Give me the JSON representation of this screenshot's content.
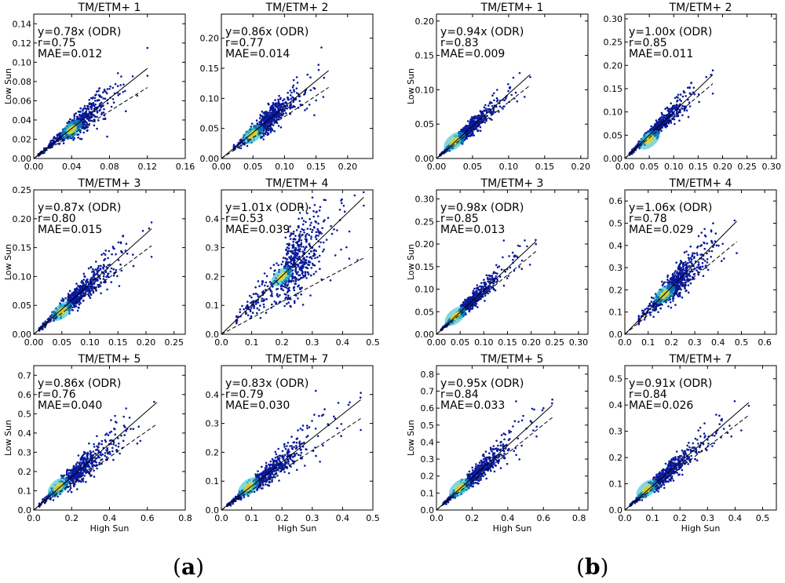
{
  "figure": {
    "panel_labels": [
      {
        "open": "(",
        "letter": "a",
        "close": ")"
      },
      {
        "open": "(",
        "letter": "b",
        "close": ")"
      }
    ],
    "axis_labels": {
      "x": "High Sun",
      "y": "Low Sun"
    },
    "colors": {
      "frame": "#000000",
      "background": "#ffffff",
      "sparse_point": "#0a1a9a",
      "density_mid": "#17b6c8",
      "density_high": "#f3d520",
      "density_peak": "#e23b1d"
    }
  },
  "chart_data": [
    {
      "group": "a",
      "type": "scatter",
      "title": "TM/ETM+ 1",
      "fit": "y=0.78x (ODR)",
      "r": "r=0.75",
      "mae": "MAE=0.012",
      "slope": 0.78,
      "r_value": 0.75,
      "xlim": [
        0,
        0.16
      ],
      "ylim": [
        0,
        0.15
      ],
      "xticks": [
        "0.00",
        "0.04",
        "0.08",
        "0.12",
        "0.16"
      ],
      "yticks": [
        "0.00",
        "0.02",
        "0.04",
        "0.06",
        "0.08",
        "0.10",
        "0.12",
        "0.14"
      ],
      "data_range": [
        0.005,
        0.12
      ],
      "center": 0.035,
      "dense_center": [
        0.04,
        0.03
      ]
    },
    {
      "group": "a",
      "type": "scatter",
      "title": "TM/ETM+ 2",
      "fit": "y=0.86x (ODR)",
      "r": "r=0.77",
      "mae": "MAE=0.014",
      "slope": 0.86,
      "r_value": 0.77,
      "xlim": [
        0,
        0.24
      ],
      "ylim": [
        0,
        0.24
      ],
      "xticks": [
        "0.00",
        "0.05",
        "0.10",
        "0.15",
        "0.20"
      ],
      "yticks": [
        "0.00",
        "0.05",
        "0.10",
        "0.15",
        "0.20"
      ],
      "data_range": [
        0.02,
        0.17
      ],
      "center": 0.06,
      "dense_center": [
        0.05,
        0.04
      ]
    },
    {
      "group": "a",
      "type": "scatter",
      "title": "TM/ETM+ 3",
      "fit": "y=0.87x (ODR)",
      "r": "r=0.80",
      "mae": "MAE=0.015",
      "slope": 0.87,
      "r_value": 0.8,
      "xlim": [
        0,
        0.27
      ],
      "ylim": [
        0,
        0.25
      ],
      "xticks": [
        "0.00",
        "0.05",
        "0.10",
        "0.15",
        "0.20",
        "0.25"
      ],
      "yticks": [
        "0.00",
        "0.05",
        "0.10",
        "0.15",
        "0.20",
        "0.25"
      ],
      "data_range": [
        0.01,
        0.21
      ],
      "center": 0.06,
      "dense_center": [
        0.05,
        0.04
      ]
    },
    {
      "group": "a",
      "type": "scatter",
      "title": "TM/ETM+ 4",
      "fit": "y=1.01x (ODR)",
      "r": "r=0.53",
      "mae": "MAE=0.039",
      "slope": 1.01,
      "r_value": 0.53,
      "xlim": [
        0,
        0.5
      ],
      "ylim": [
        0,
        0.5
      ],
      "xticks": [
        "0.0",
        "0.1",
        "0.2",
        "0.3",
        "0.4",
        "0.5"
      ],
      "yticks": [
        "0.0",
        "0.1",
        "0.2",
        "0.3",
        "0.4"
      ],
      "data_range": [
        0.05,
        0.47
      ],
      "center": 0.21,
      "dense_center": [
        0.2,
        0.2
      ]
    },
    {
      "group": "a",
      "type": "scatter",
      "title": "TM/ETM+ 5",
      "fit": "y=0.86x (ODR)",
      "r": "r=0.76",
      "mae": "MAE=0.040",
      "slope": 0.86,
      "r_value": 0.76,
      "xlim": [
        0,
        0.8
      ],
      "ylim": [
        0,
        0.75
      ],
      "xticks": [
        "0.0",
        "0.2",
        "0.4",
        "0.6",
        "0.8"
      ],
      "yticks": [
        "0.0",
        "0.1",
        "0.2",
        "0.3",
        "0.4",
        "0.5",
        "0.6",
        "0.7"
      ],
      "data_range": [
        0.03,
        0.65
      ],
      "center": 0.17,
      "dense_center": [
        0.13,
        0.12
      ]
    },
    {
      "group": "a",
      "type": "scatter",
      "title": "TM/ETM+ 7",
      "fit": "y=0.83x (ODR)",
      "r": "r=0.79",
      "mae": "MAE=0.030",
      "slope": 0.83,
      "r_value": 0.79,
      "xlim": [
        0,
        0.5
      ],
      "ylim": [
        0,
        0.5
      ],
      "xticks": [
        "0.0",
        "0.1",
        "0.2",
        "0.3",
        "0.4",
        "0.5"
      ],
      "yticks": [
        "0.0",
        "0.1",
        "0.2",
        "0.3",
        "0.4"
      ],
      "data_range": [
        0.02,
        0.46
      ],
      "center": 0.11,
      "dense_center": [
        0.09,
        0.08
      ]
    },
    {
      "group": "b",
      "type": "scatter",
      "title": "TM/ETM+ 1",
      "fit": "y=0.94x (ODR)",
      "r": "r=0.83",
      "mae": "MAE=0.009",
      "slope": 0.94,
      "r_value": 0.83,
      "xlim": [
        0,
        0.21
      ],
      "ylim": [
        0,
        0.21
      ],
      "xticks": [
        "0.00",
        "0.05",
        "0.10",
        "0.15",
        "0.20"
      ],
      "yticks": [
        "0.00",
        "0.05",
        "0.10",
        "0.15",
        "0.20"
      ],
      "data_range": [
        0.005,
        0.13
      ],
      "center": 0.03,
      "dense_center": [
        0.025,
        0.025
      ]
    },
    {
      "group": "b",
      "type": "scatter",
      "title": "TM/ETM+ 2",
      "fit": "y=1.00x (ODR)",
      "r": "r=0.85",
      "mae": "MAE=0.011",
      "slope": 1.0,
      "r_value": 0.85,
      "xlim": [
        0,
        0.31
      ],
      "ylim": [
        0,
        0.31
      ],
      "xticks": [
        "0.00",
        "0.05",
        "0.10",
        "0.15",
        "0.20",
        "0.25",
        "0.30"
      ],
      "yticks": [
        "0.00",
        "0.05",
        "0.10",
        "0.15",
        "0.20",
        "0.25",
        "0.30"
      ],
      "data_range": [
        0.01,
        0.18
      ],
      "center": 0.05,
      "dense_center": [
        0.05,
        0.04
      ]
    },
    {
      "group": "b",
      "type": "scatter",
      "title": "TM/ETM+ 3",
      "fit": "y=0.98x (ODR)",
      "r": "r=0.85",
      "mae": "MAE=0.013",
      "slope": 0.98,
      "r_value": 0.85,
      "xlim": [
        0,
        0.32
      ],
      "ylim": [
        0,
        0.32
      ],
      "xticks": [
        "0.00",
        "0.05",
        "0.10",
        "0.15",
        "0.20",
        "0.25",
        "0.30"
      ],
      "yticks": [
        "0.00",
        "0.05",
        "0.10",
        "0.15",
        "0.20",
        "0.25",
        "0.30"
      ],
      "data_range": [
        0.01,
        0.21
      ],
      "center": 0.05,
      "dense_center": [
        0.04,
        0.04
      ]
    },
    {
      "group": "b",
      "type": "scatter",
      "title": "TM/ETM+ 4",
      "fit": "y=1.06x (ODR)",
      "r": "r=0.78",
      "mae": "MAE=0.029",
      "slope": 1.06,
      "r_value": 0.78,
      "xlim": [
        0,
        0.65
      ],
      "ylim": [
        0,
        0.65
      ],
      "xticks": [
        "0.0",
        "0.1",
        "0.2",
        "0.3",
        "0.4",
        "0.5",
        "0.6"
      ],
      "yticks": [
        "0.0",
        "0.1",
        "0.2",
        "0.3",
        "0.4",
        "0.5",
        "0.6"
      ],
      "data_range": [
        0.06,
        0.48
      ],
      "center": 0.18,
      "dense_center": [
        0.17,
        0.18
      ]
    },
    {
      "group": "b",
      "type": "scatter",
      "title": "TM/ETM+ 5",
      "fit": "y=0.95x (ODR)",
      "r": "r=0.84",
      "mae": "MAE=0.033",
      "slope": 0.95,
      "r_value": 0.84,
      "xlim": [
        0,
        0.85
      ],
      "ylim": [
        0,
        0.85
      ],
      "xticks": [
        "0.0",
        "0.2",
        "0.4",
        "0.6",
        "0.8"
      ],
      "yticks": [
        "0.0",
        "0.1",
        "0.2",
        "0.3",
        "0.4",
        "0.5",
        "0.6",
        "0.7",
        "0.8"
      ],
      "data_range": [
        0.04,
        0.65
      ],
      "center": 0.17,
      "dense_center": [
        0.13,
        0.13
      ]
    },
    {
      "group": "b",
      "type": "scatter",
      "title": "TM/ETM+ 7",
      "fit": "y=0.91x (ODR)",
      "r": "r=0.84",
      "mae": "MAE=0.026",
      "slope": 0.91,
      "r_value": 0.84,
      "xlim": [
        0,
        0.55
      ],
      "ylim": [
        0,
        0.55
      ],
      "xticks": [
        "0.0",
        "0.1",
        "0.2",
        "0.3",
        "0.4",
        "0.5"
      ],
      "yticks": [
        "0.0",
        "0.1",
        "0.2",
        "0.3",
        "0.4",
        "0.5"
      ],
      "data_range": [
        0.02,
        0.45
      ],
      "center": 0.1,
      "dense_center": [
        0.08,
        0.08
      ]
    }
  ]
}
